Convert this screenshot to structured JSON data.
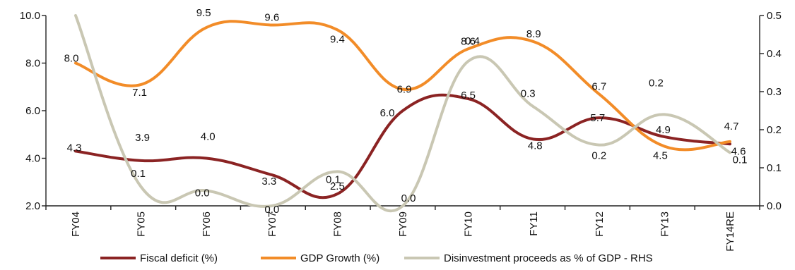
{
  "chart_data": {
    "type": "line",
    "categories": [
      "FY04",
      "FY05",
      "FY06",
      "FY07",
      "FY08",
      "FY09",
      "FY10",
      "FY11",
      "FY12",
      "FY13",
      "FY14RE"
    ],
    "y_left": {
      "min": 2.0,
      "max": 10.0,
      "ticks": [
        "2.0",
        "4.0",
        "6.0",
        "8.0",
        "10.0"
      ]
    },
    "y_right": {
      "min": 0.0,
      "max": 0.5,
      "ticks": [
        "0.0",
        "0.1",
        "0.2",
        "0.3",
        "0.4",
        "0.5"
      ]
    },
    "series": [
      {
        "name": "Fiscal deficit (%)",
        "axis": "left",
        "color": "#8b2323",
        "values": [
          4.3,
          3.9,
          4.0,
          3.3,
          2.5,
          6.0,
          6.5,
          4.8,
          5.7,
          4.9,
          4.6
        ],
        "labels": [
          "4.3",
          "3.9",
          "4.0",
          "3.3",
          "2.5",
          "6.0",
          "6.5",
          "4.8",
          "5.7",
          "4.9",
          "4.6"
        ]
      },
      {
        "name": "GDP Growth (%)",
        "axis": "left",
        "color": "#f28c28",
        "values": [
          8.0,
          7.1,
          9.5,
          9.6,
          9.4,
          6.9,
          8.6,
          8.9,
          6.7,
          4.5,
          4.7
        ],
        "labels": [
          "8.0",
          "7.1",
          "9.5",
          "9.6",
          "9.4",
          "6.9",
          "8.6",
          "8.9",
          "6.7",
          "4.5",
          "4.7"
        ]
      },
      {
        "name": "Disinvestment proceeds as % of GDP - RHS",
        "axis": "right",
        "color": "#c9c7b3",
        "values": [
          0.5,
          0.05,
          0.04,
          0.0,
          0.09,
          0.0,
          0.38,
          0.26,
          0.16,
          0.24,
          0.14
        ],
        "labels": [
          "",
          "0.1",
          "0.0",
          "0.0",
          "0.1",
          "0.0",
          "0.4",
          "0.3",
          "0.2",
          "0.2",
          "0.1"
        ]
      }
    ],
    "legend": {
      "position": "bottom"
    },
    "grid": false
  }
}
